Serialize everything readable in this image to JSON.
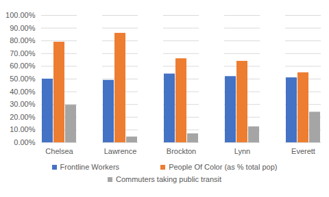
{
  "chart_data": {
    "type": "bar",
    "categories": [
      "Chelsea",
      "Lawrence",
      "Brockton",
      "Lynn",
      "Everett"
    ],
    "series": [
      {
        "name": "Frontline Workers",
        "color": "#4472c4",
        "values": [
          50,
          49,
          54,
          52,
          51
        ]
      },
      {
        "name": "People Of Color (as % total pop)",
        "color": "#ed7d31",
        "values": [
          79,
          86,
          66,
          64,
          55
        ]
      },
      {
        "name": "Commuters taking public transit",
        "color": "#a5a5a5",
        "values": [
          29.5,
          4.5,
          7,
          12.5,
          24
        ]
      }
    ],
    "ylim": [
      0,
      100
    ],
    "yticks": [
      {
        "value": 0,
        "label": "0.00%"
      },
      {
        "value": 10,
        "label": "10.00%"
      },
      {
        "value": 20,
        "label": "20.00%"
      },
      {
        "value": 30,
        "label": "30.00%"
      },
      {
        "value": 40,
        "label": "40.00%"
      },
      {
        "value": 50,
        "label": "50.00%"
      },
      {
        "value": 60,
        "label": "60.00%"
      },
      {
        "value": 70,
        "label": "70.00%"
      },
      {
        "value": 80,
        "label": "80.00%"
      },
      {
        "value": 90,
        "label": "90.00%"
      },
      {
        "value": 100,
        "label": "100.00%"
      }
    ],
    "grid": true,
    "legend": "bottom"
  }
}
